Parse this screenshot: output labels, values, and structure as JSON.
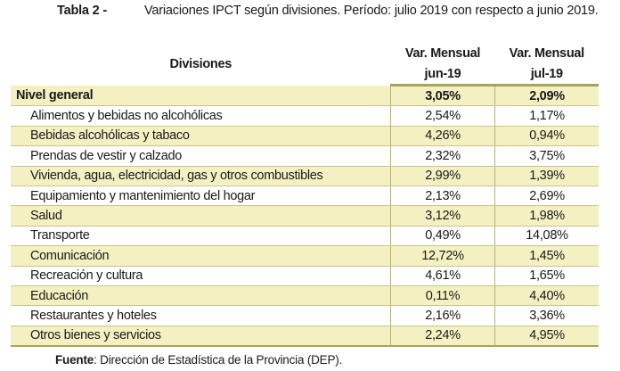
{
  "caption": {
    "label": "Tabla 2 -",
    "text": "Variaciones IPCT según divisiones. Período: julio 2019 con respecto a junio 2019."
  },
  "table": {
    "headers": {
      "col1": "Divisiones",
      "col2_line1": "Var. Mensual",
      "col2_line2": "jun-19",
      "col3_line1": "Var. Mensual",
      "col3_line2": "jul-19"
    },
    "rows": [
      {
        "division": "Nivel general",
        "jun": "3,05%",
        "jul": "2,09%"
      },
      {
        "division": "Alimentos y bebidas no alcohólicas",
        "jun": "2,54%",
        "jul": "1,17%"
      },
      {
        "division": "Bebidas alcohólicas y tabaco",
        "jun": "4,26%",
        "jul": "0,94%"
      },
      {
        "division": "Prendas de vestir y calzado",
        "jun": "2,32%",
        "jul": "3,75%"
      },
      {
        "division": "Vivienda, agua, electricidad, gas y otros combustibles",
        "jun": "2,99%",
        "jul": "1,39%"
      },
      {
        "division": "Equipamiento y mantenimiento del hogar",
        "jun": "2,13%",
        "jul": "2,69%"
      },
      {
        "division": "Salud",
        "jun": "3,12%",
        "jul": "1,98%"
      },
      {
        "division": "Transporte",
        "jun": "0,49%",
        "jul": "14,08%"
      },
      {
        "division": "Comunicación",
        "jun": "12,72%",
        "jul": "1,45%"
      },
      {
        "division": "Recreación y cultura",
        "jun": "4,61%",
        "jul": "1,65%"
      },
      {
        "division": "Educación",
        "jun": "0,11%",
        "jul": "4,40%"
      },
      {
        "division": "Restaurantes y hoteles",
        "jun": "2,16%",
        "jul": "3,36%"
      },
      {
        "division": "Otros bienes y servicios",
        "jun": "2,24%",
        "jul": "4,95%"
      }
    ]
  },
  "source": {
    "label": "Fuente",
    "text": ": Dirección de Estadística de la Provincia (DEP)."
  },
  "colors": {
    "highlight": "#f4f0c2",
    "rule": "#a8a25a"
  }
}
